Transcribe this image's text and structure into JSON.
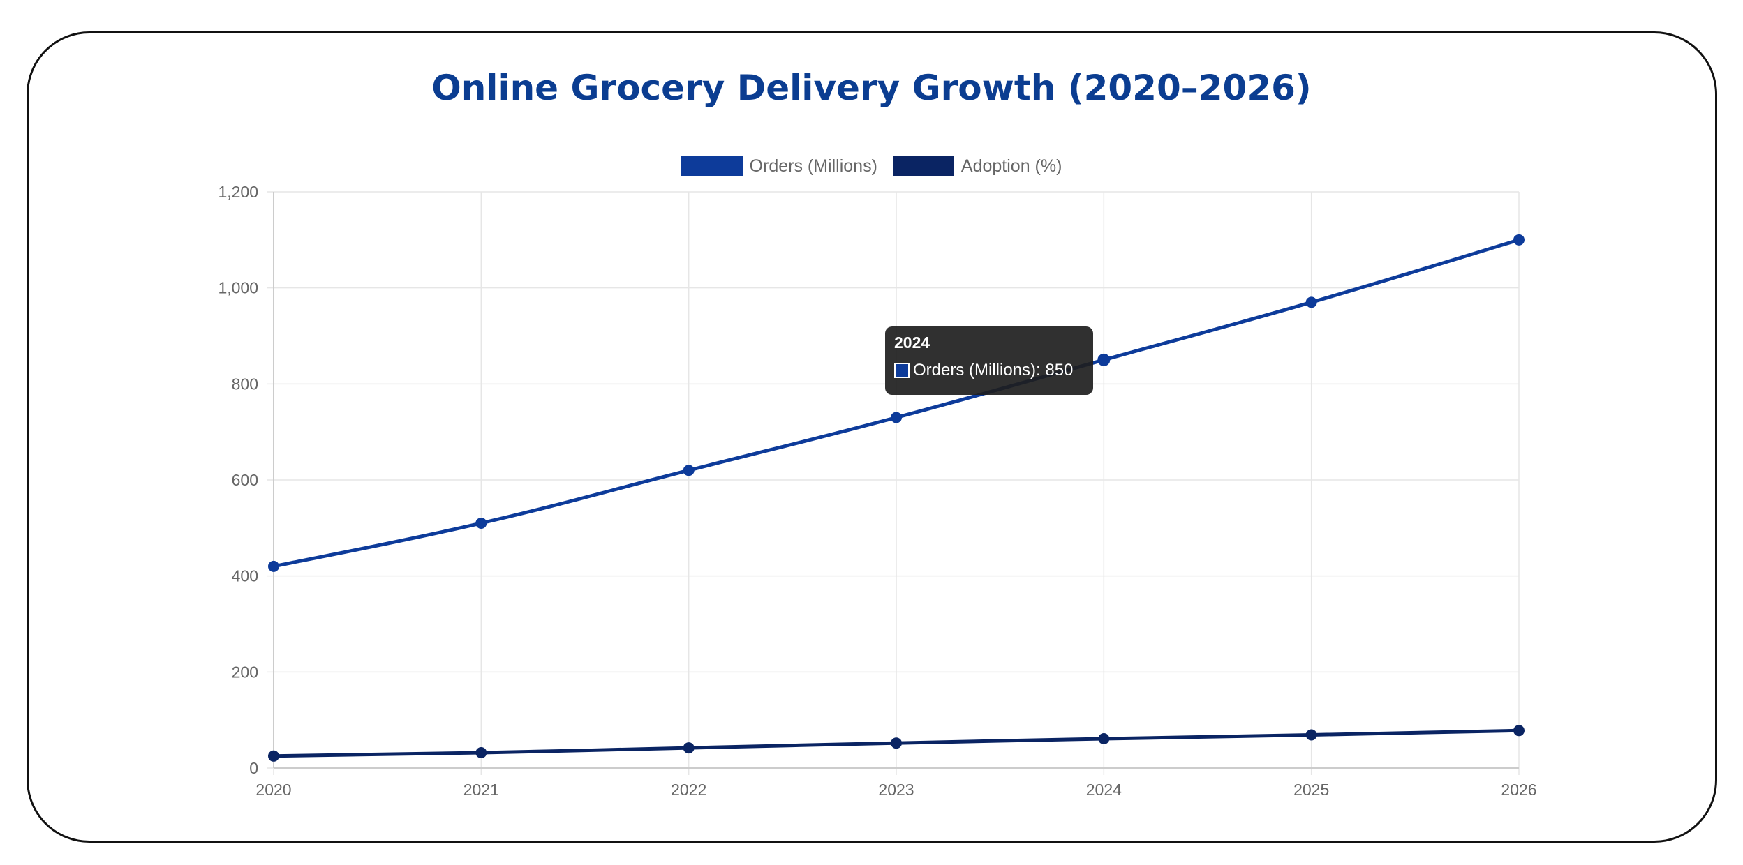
{
  "colors": {
    "orders": "#0d3b9a",
    "adoption": "#0a2463",
    "title": "#0b3d91",
    "grid": "#e6e6e6",
    "tick": "#666666"
  },
  "chart_data": {
    "type": "line",
    "title": "Online Grocery Delivery Growth (2020–2026)",
    "xlabel": "",
    "ylabel": "",
    "categories": [
      "2020",
      "2021",
      "2022",
      "2023",
      "2024",
      "2025",
      "2026"
    ],
    "ylim": [
      0,
      1200
    ],
    "yticks": [
      0,
      200,
      400,
      600,
      800,
      1000,
      1200
    ],
    "ytick_labels": [
      "0",
      "200",
      "400",
      "600",
      "800",
      "1,000",
      "1,200"
    ],
    "grid": true,
    "legend_position": "top-center",
    "series": [
      {
        "name": "Orders (Millions)",
        "color": "#0d3b9a",
        "values": [
          420,
          510,
          620,
          730,
          850,
          970,
          1100
        ]
      },
      {
        "name": "Adoption (%)",
        "color": "#0a2463",
        "values": [
          25,
          32,
          42,
          52,
          61,
          69,
          78
        ]
      }
    ],
    "tooltip": {
      "title": "2024",
      "label": "Orders (Millions): 850",
      "series": "Orders (Millions)",
      "category": "2024"
    }
  }
}
